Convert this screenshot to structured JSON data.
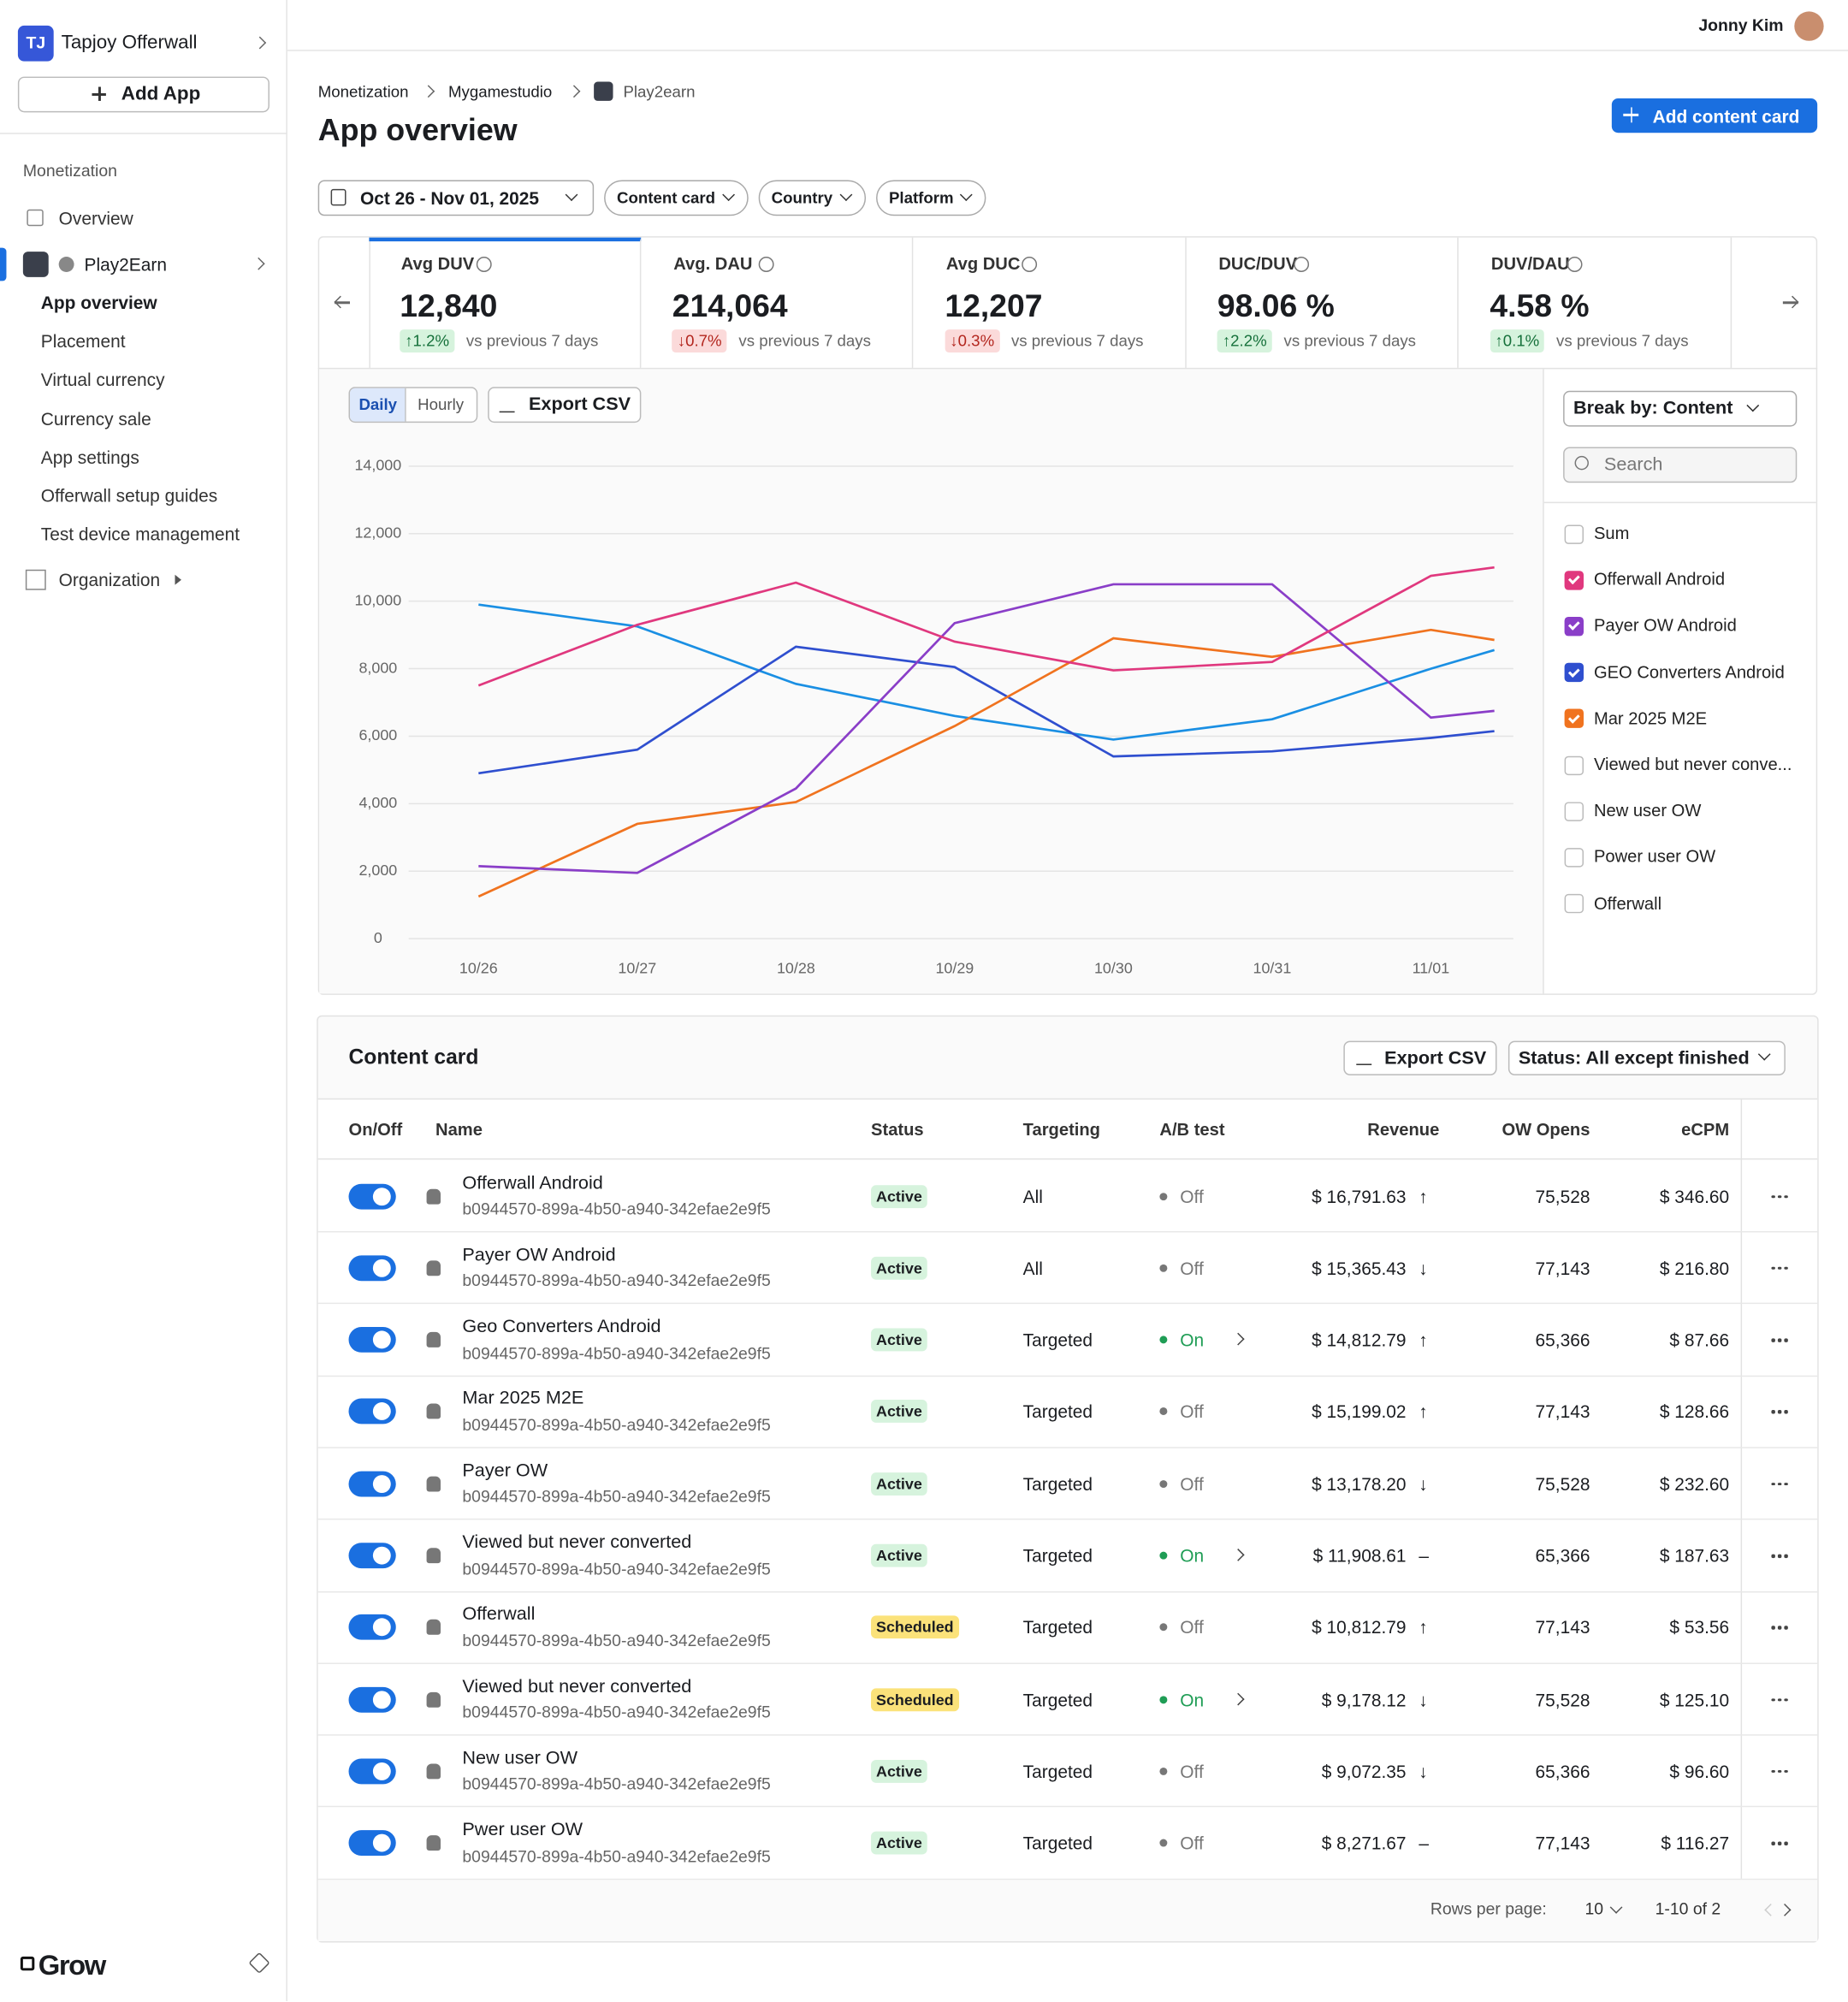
{
  "header": {
    "user": "Jonny Kim"
  },
  "sidebar": {
    "badge": "TJ",
    "org": "Tapjoy Offerwall",
    "add_app": "Add App",
    "section": "Monetization",
    "overview": "Overview",
    "app": "Play2Earn",
    "items": [
      "App overview",
      "Placement",
      "Virtual currency",
      "Currency sale",
      "App settings",
      "Offerwall setup guides",
      "Test device management"
    ],
    "organization": "Organization",
    "brand": "Grow"
  },
  "breadcrumbs": [
    "Monetization",
    "Mygamestudio",
    "Play2earn"
  ],
  "title": "App overview",
  "add_button": "Add content card",
  "filters": {
    "date": "Oct 26 - Nov 01, 2025",
    "others": [
      "Content card",
      "Country",
      "Platform"
    ]
  },
  "kpis": [
    {
      "label": "Avg DUV",
      "value": "12,840",
      "delta": "↑1.2%",
      "positive": true,
      "caption": "vs previous 7 days"
    },
    {
      "label": "Avg. DAU",
      "value": "214,064",
      "delta": "↓0.7%",
      "positive": false,
      "caption": "vs previous 7 days"
    },
    {
      "label": "Avg DUC",
      "value": "12,207",
      "delta": "↓0.3%",
      "positive": false,
      "caption": "vs previous 7 days"
    },
    {
      "label": "DUC/DUV",
      "value": "98.06 %",
      "delta": "↑2.2%",
      "positive": true,
      "caption": "vs previous 7 days"
    },
    {
      "label": "DUV/DAU",
      "value": "4.58 %",
      "delta": "↑0.1%",
      "positive": true,
      "caption": "vs previous 7 days"
    }
  ],
  "chart_data": {
    "type": "line",
    "toggle": [
      "Daily",
      "Hourly"
    ],
    "export": "Export CSV",
    "x": [
      0,
      1,
      2,
      3,
      4,
      5,
      6,
      6.4
    ],
    "xlim": [
      -0.44,
      6.52
    ],
    "xticks": [
      {
        "value": 0,
        "label": "10/26"
      },
      {
        "value": 1,
        "label": "10/27"
      },
      {
        "value": 2,
        "label": "10/28"
      },
      {
        "value": 3,
        "label": "10/29"
      },
      {
        "value": 4,
        "label": "10/30"
      },
      {
        "value": 5,
        "label": "10/31"
      },
      {
        "value": 6,
        "label": "11/01"
      }
    ],
    "ylim": [
      0,
      14000
    ],
    "yticks": [
      0,
      {
        "value": 2000,
        "label": "2,000"
      },
      {
        "value": 4000,
        "label": "4,000"
      },
      {
        "value": 6000,
        "label": "6,000"
      },
      {
        "value": 8000,
        "label": "8,000"
      },
      {
        "value": 10000,
        "label": "10,000"
      },
      {
        "value": 12000,
        "label": "12,000"
      },
      {
        "value": 14000,
        "label": "14,000"
      }
    ],
    "grid": true,
    "series": [
      {
        "color": "#1a8fe3",
        "values": [
          9900,
          9250,
          7550,
          6600,
          5900,
          6500,
          8000,
          8550
        ]
      },
      {
        "color": "#2f4fcf",
        "values": [
          4900,
          5600,
          8650,
          8050,
          5400,
          5550,
          5950,
          6150
        ]
      },
      {
        "color": "#f0731f",
        "values": [
          1250,
          3400,
          4050,
          6300,
          8900,
          8350,
          9150,
          8850
        ]
      },
      {
        "color": "#8a3ec8",
        "values": [
          2150,
          1950,
          4450,
          9350,
          10500,
          10500,
          6550,
          6750
        ]
      },
      {
        "color": "#e0387e",
        "values": [
          7500,
          9300,
          10550,
          8800,
          7950,
          8200,
          10750,
          11000
        ]
      }
    ]
  },
  "breakdown": {
    "select": "Break by: Content",
    "search": "Search",
    "items": [
      {
        "label": "Sum",
        "checked": false
      },
      {
        "label": "Offerwall Android",
        "checked": true,
        "color": "#e0387e"
      },
      {
        "label": "Payer OW Android",
        "checked": true,
        "color": "#8a3ec8"
      },
      {
        "label": "GEO Converters Android",
        "checked": true,
        "color": "#2f4fcf"
      },
      {
        "label": "Mar 2025 M2E",
        "checked": true,
        "color": "#f0731f"
      },
      {
        "label": "Viewed but never conve...",
        "checked": false
      },
      {
        "label": "New user OW",
        "checked": false
      },
      {
        "label": "Power user OW",
        "checked": false
      },
      {
        "label": "Offerwall",
        "checked": false
      }
    ]
  },
  "table": {
    "title": "Content card",
    "export": "Export CSV",
    "status_filter": "Status: All except finished",
    "columns": [
      "On/Off",
      "Name",
      "Status",
      "Targeting",
      "A/B test",
      "Revenue",
      "OW Opens",
      "eCPM"
    ],
    "rows": [
      {
        "on": true,
        "name": "Offerwall Android",
        "id": "b0944570-899a-4b50-a940-342efae2e9f5",
        "status": "Active",
        "status_color": "#d6f3dd",
        "targeting": "All",
        "ab": "Off",
        "ab_color": "#777",
        "ab_detail": false,
        "revenue": "$ 16,791.63",
        "trend": "↑",
        "opens": "75,528",
        "ecpm": "$ 346.60"
      },
      {
        "on": true,
        "name": "Payer OW Android",
        "id": "b0944570-899a-4b50-a940-342efae2e9f5",
        "status": "Active",
        "status_color": "#d6f3dd",
        "targeting": "All",
        "ab": "Off",
        "ab_color": "#777",
        "ab_detail": false,
        "revenue": "$ 15,365.43",
        "trend": "↓",
        "opens": "77,143",
        "ecpm": "$ 216.80"
      },
      {
        "on": true,
        "name": "Geo Converters Android",
        "id": "b0944570-899a-4b50-a940-342efae2e9f5",
        "status": "Active",
        "status_color": "#d6f3dd",
        "targeting": "Targeted",
        "ab": "On",
        "ab_color": "#1f9d55",
        "ab_detail": true,
        "revenue": "$ 14,812.79",
        "trend": "↑",
        "opens": "65,366",
        "ecpm": "$ 87.66"
      },
      {
        "on": true,
        "name": "Mar 2025 M2E",
        "id": "b0944570-899a-4b50-a940-342efae2e9f5",
        "status": "Active",
        "status_color": "#d6f3dd",
        "targeting": "Targeted",
        "ab": "Off",
        "ab_color": "#777",
        "ab_detail": false,
        "revenue": "$ 15,199.02",
        "trend": "↑",
        "opens": "77,143",
        "ecpm": "$ 128.66"
      },
      {
        "on": true,
        "name": "Payer OW",
        "id": "b0944570-899a-4b50-a940-342efae2e9f5",
        "status": "Active",
        "status_color": "#d6f3dd",
        "targeting": "Targeted",
        "ab": "Off",
        "ab_color": "#777",
        "ab_detail": false,
        "revenue": "$ 13,178.20",
        "trend": "↓",
        "opens": "75,528",
        "ecpm": "$ 232.60"
      },
      {
        "on": true,
        "name": "Viewed but never converted",
        "id": "b0944570-899a-4b50-a940-342efae2e9f5",
        "status": "Active",
        "status_color": "#d6f3dd",
        "targeting": "Targeted",
        "ab": "On",
        "ab_color": "#1f9d55",
        "ab_detail": true,
        "revenue": "$ 11,908.61",
        "trend": "–",
        "opens": "65,366",
        "ecpm": "$ 187.63"
      },
      {
        "on": true,
        "name": "Offerwall",
        "id": "b0944570-899a-4b50-a940-342efae2e9f5",
        "status": "Scheduled",
        "status_color": "#fbe27a",
        "targeting": "Targeted",
        "ab": "Off",
        "ab_color": "#777",
        "ab_detail": false,
        "revenue": "$ 10,812.79",
        "trend": "↑",
        "opens": "77,143",
        "ecpm": "$ 53.56"
      },
      {
        "on": true,
        "name": "Viewed but never converted",
        "id": "b0944570-899a-4b50-a940-342efae2e9f5",
        "status": "Scheduled",
        "status_color": "#fbe27a",
        "targeting": "Targeted",
        "ab": "On",
        "ab_color": "#1f9d55",
        "ab_detail": true,
        "revenue": "$ 9,178.12",
        "trend": "↓",
        "opens": "75,528",
        "ecpm": "$ 125.10"
      },
      {
        "on": true,
        "name": "New user OW",
        "id": "b0944570-899a-4b50-a940-342efae2e9f5",
        "status": "Active",
        "status_color": "#d6f3dd",
        "targeting": "Targeted",
        "ab": "Off",
        "ab_color": "#777",
        "ab_detail": false,
        "revenue": "$ 9,072.35",
        "trend": "↓",
        "opens": "65,366",
        "ecpm": "$ 96.60"
      },
      {
        "on": true,
        "name": "Pwer user OW",
        "id": "b0944570-899a-4b50-a940-342efae2e9f5",
        "status": "Active",
        "status_color": "#d6f3dd",
        "targeting": "Targeted",
        "ab": "Off",
        "ab_color": "#777",
        "ab_detail": false,
        "revenue": "$ 8,271.67",
        "trend": "–",
        "opens": "77,143",
        "ecpm": "$ 116.27"
      }
    ],
    "footer": {
      "rows_per_page": "Rows per page:",
      "page_size": "10",
      "range": "1-10 of 2"
    }
  }
}
